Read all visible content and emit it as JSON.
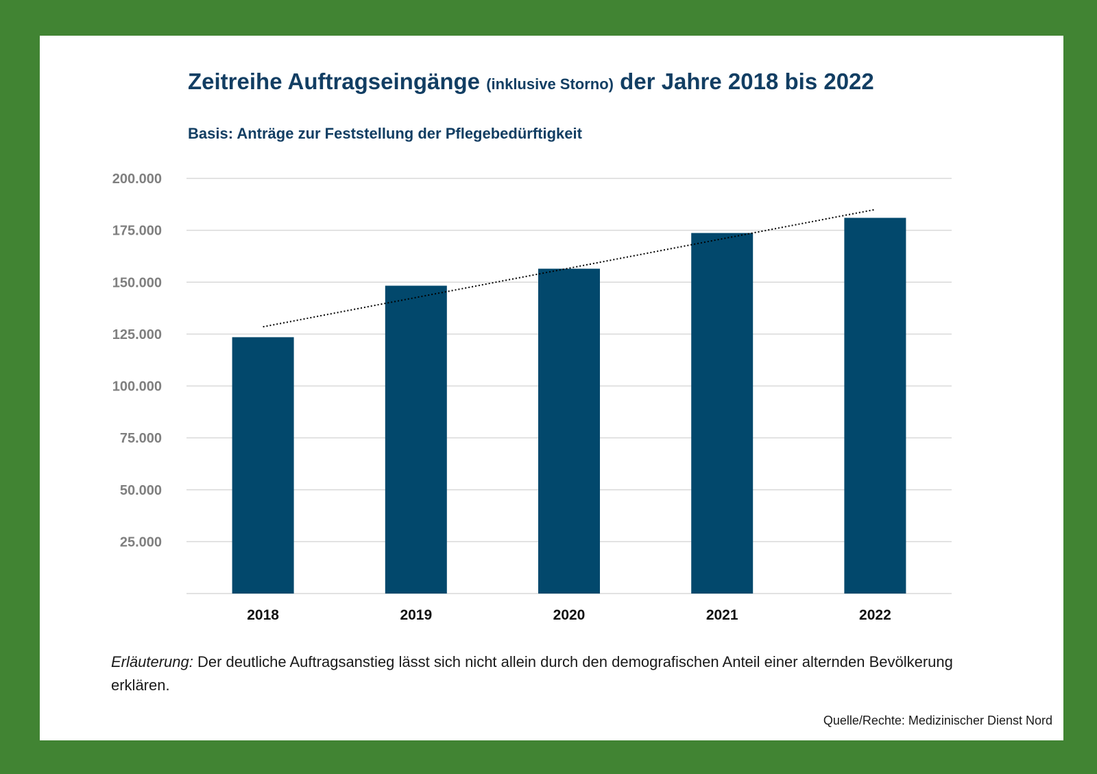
{
  "header": {
    "title_main": "Zeitreihe Auftragseingänge",
    "title_small": "(inklusive Storno)",
    "title_end": "der Jahre 2018 bis 2022",
    "subtitle": "Basis: Anträge zur Feststellung der Pflegebedürftigkeit"
  },
  "note": {
    "label": "Erläuterung:",
    "text": "Der deutliche Auftragsanstieg lässt sich nicht allein durch den demografischen Anteil einer alternden Bevölkerung erklären."
  },
  "source": "Quelle/Rechte: Medizinischer Dienst Nord",
  "colors": {
    "frame": "#418433",
    "bar": "#02486c",
    "title": "#123e63",
    "grid": "#d9d9d9",
    "ytick": "#7f7f7f"
  },
  "chart_data": {
    "type": "bar",
    "title": "Zeitreihe Auftragseingänge (inklusive Storno) der Jahre 2018 bis 2022",
    "subtitle": "Basis: Anträge zur Feststellung der Pflegebedürftigkeit",
    "categories": [
      "2018",
      "2019",
      "2020",
      "2021",
      "2022"
    ],
    "values": [
      123500,
      148300,
      156500,
      173700,
      181000
    ],
    "ylim": [
      0,
      200000
    ],
    "yticks": [
      25000,
      50000,
      75000,
      100000,
      125000,
      150000,
      175000,
      200000
    ],
    "ytick_labels": [
      "25.000",
      "50.000",
      "75.000",
      "100.000",
      "125.000",
      "150.000",
      "175.000",
      "200.000"
    ],
    "trendline": {
      "style": "dotted",
      "type": "linear",
      "start": 128500,
      "end": 185000
    },
    "grid": true,
    "legend": "none"
  }
}
